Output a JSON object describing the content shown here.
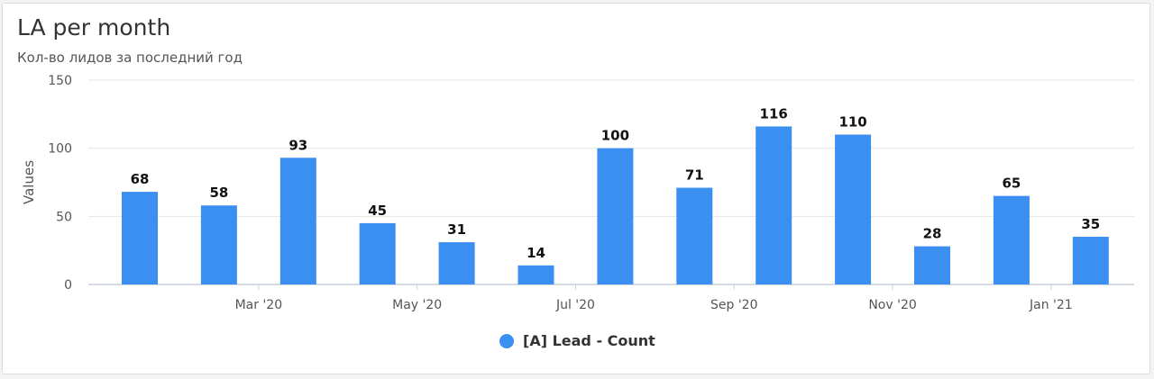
{
  "chart_data": {
    "type": "bar",
    "title": "LA per month",
    "subtitle": "Кол-во лидов за последний год",
    "ylabel": "Values",
    "xlabel": "",
    "ylim": [
      0,
      150
    ],
    "yticks": [
      0,
      50,
      100,
      150
    ],
    "xtick_labels": [
      {
        "index": 1,
        "label": "Mar '20"
      },
      {
        "index": 3,
        "label": "May '20"
      },
      {
        "index": 5,
        "label": "Jul '20"
      },
      {
        "index": 7,
        "label": "Sep '20"
      },
      {
        "index": 9,
        "label": "Nov '20"
      },
      {
        "index": 11,
        "label": "Jan '21"
      }
    ],
    "series": [
      {
        "name": "[A] Lead - Count",
        "color": "#3a8ff0",
        "values": [
          68,
          58,
          93,
          45,
          31,
          14,
          100,
          71,
          116,
          110,
          28,
          65,
          35
        ]
      }
    ],
    "grid": true,
    "legend_position": "bottom-center",
    "data_labels": true
  }
}
